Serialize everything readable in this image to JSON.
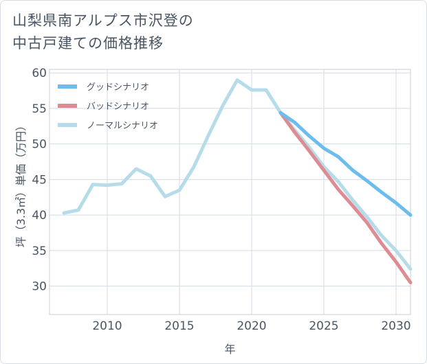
{
  "title": "山梨県南アルプス市沢登の\n中古戸建ての価格推移",
  "chart_data": {
    "type": "line",
    "xlabel": "年",
    "ylabel": "坪（3.3㎡）単価（万円）",
    "xlim": [
      2006,
      2031
    ],
    "ylim": [
      26,
      60.5
    ],
    "x_ticks": [
      2010,
      2015,
      2020,
      2025,
      2030
    ],
    "y_ticks": [
      30,
      35,
      40,
      45,
      50,
      55,
      60
    ],
    "grid": true,
    "legend_position": "top-left",
    "series": [
      {
        "name": "グッドシナリオ",
        "color": "#6cbcee",
        "x": [
          2022,
          2023,
          2024,
          2025,
          2026,
          2027,
          2028,
          2029,
          2030,
          2031
        ],
        "y": [
          54.4,
          53.0,
          51.1,
          49.4,
          48.2,
          46.3,
          44.8,
          43.2,
          41.7,
          40.0
        ]
      },
      {
        "name": "バッドシナリオ",
        "color": "#dc8c92",
        "x": [
          2022,
          2023,
          2024,
          2025,
          2026,
          2027,
          2028,
          2029,
          2030,
          2031
        ],
        "y": [
          54.4,
          51.6,
          49.0,
          46.3,
          43.6,
          41.3,
          38.9,
          36.0,
          33.4,
          30.5
        ]
      },
      {
        "name": "ノーマルシナリオ",
        "color": "#b6dcea",
        "x": [
          2007,
          2008,
          2009,
          2010,
          2011,
          2012,
          2013,
          2014,
          2015,
          2016,
          2017,
          2018,
          2019,
          2020,
          2021,
          2022,
          2023,
          2024,
          2025,
          2026,
          2027,
          2028,
          2029,
          2030,
          2031
        ],
        "y": [
          40.3,
          40.7,
          44.3,
          44.2,
          44.4,
          46.5,
          45.5,
          42.6,
          43.5,
          46.8,
          51.2,
          55.4,
          59.0,
          57.6,
          57.6,
          54.4,
          51.9,
          49.5,
          46.8,
          44.7,
          42.1,
          39.7,
          37.1,
          35.0,
          32.4
        ]
      }
    ]
  }
}
